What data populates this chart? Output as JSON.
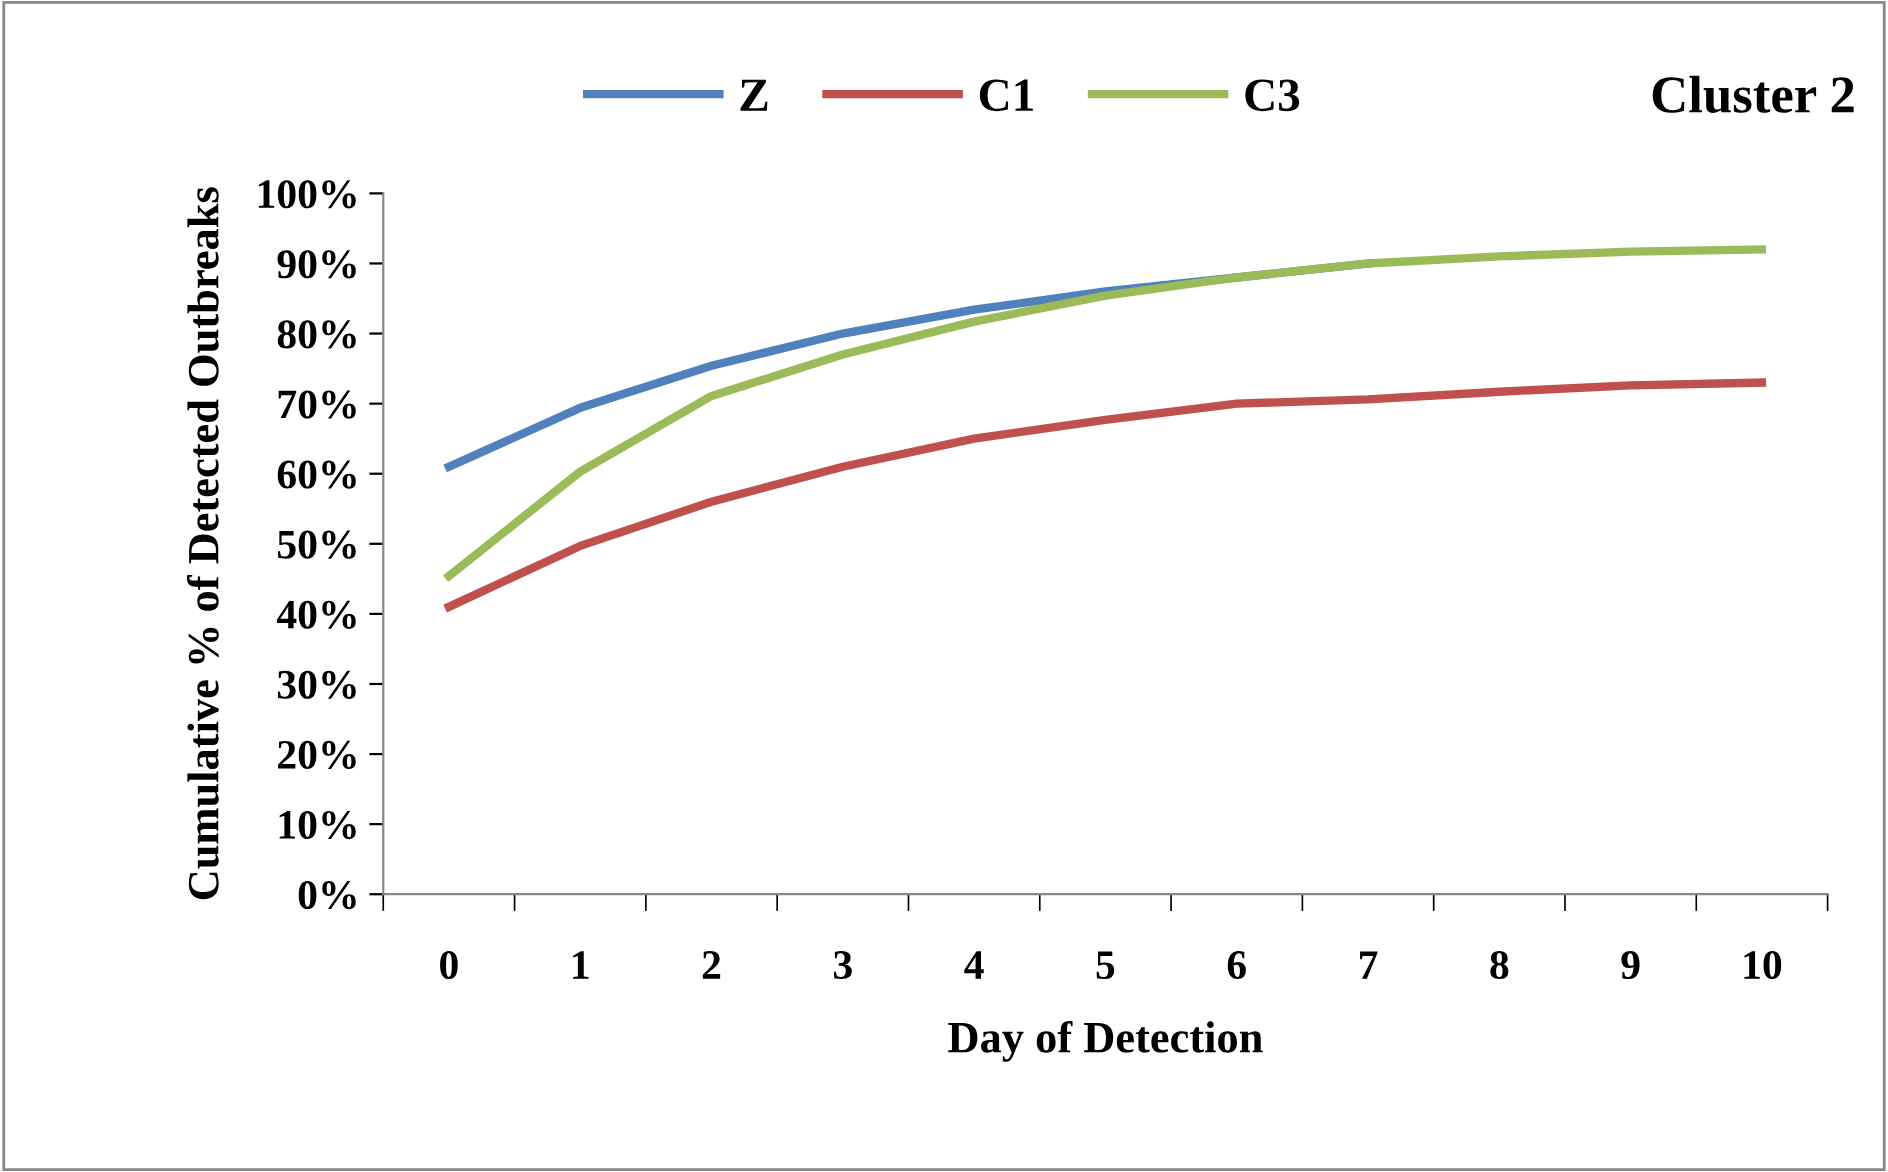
{
  "chart_data": {
    "type": "line",
    "title": "Cluster 2",
    "xlabel": "Day of Detection",
    "ylabel": "Cumulative % of Detected Outbreaks",
    "categories": [
      "0",
      "1",
      "2",
      "3",
      "4",
      "5",
      "6",
      "7",
      "8",
      "9",
      "10"
    ],
    "series": [
      {
        "name": "Z",
        "color": "#4f81bd",
        "values": [
          61,
          69.4,
          75.4,
          80,
          83.4,
          86,
          88,
          90,
          null,
          null,
          null
        ]
      },
      {
        "name": "C1",
        "color": "#c0504d",
        "values": [
          41,
          49.7,
          56,
          61,
          65,
          67.7,
          70,
          70.6,
          71.7,
          72.6,
          73
        ]
      },
      {
        "name": "C3",
        "color": "#9bbb59",
        "values": [
          45.4,
          60.3,
          71.1,
          77,
          81.7,
          85.4,
          88,
          90,
          91,
          91.7,
          92
        ]
      }
    ],
    "ylim": [
      0,
      100
    ],
    "yticks": [
      {
        "value": 0,
        "label": "0%"
      },
      {
        "value": 10,
        "label": "10%"
      },
      {
        "value": 20,
        "label": "20%"
      },
      {
        "value": 30,
        "label": "30%"
      },
      {
        "value": 40,
        "label": "40%"
      },
      {
        "value": 50,
        "label": "50%"
      },
      {
        "value": 60,
        "label": "60%"
      },
      {
        "value": 70,
        "label": "70%"
      },
      {
        "value": 80,
        "label": "80%"
      },
      {
        "value": 90,
        "label": "90%"
      },
      {
        "value": 100,
        "label": "100%"
      }
    ],
    "grid": false,
    "legend": "top",
    "marker": "none",
    "line_style": "solid"
  }
}
